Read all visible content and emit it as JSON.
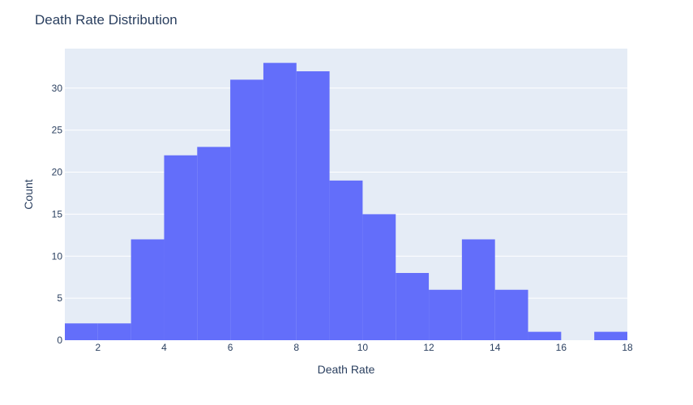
{
  "chart_data": {
    "type": "bar",
    "title": "Death Rate Distribution",
    "xlabel": "Death Rate",
    "ylabel": "Count",
    "xlim": [
      1,
      18
    ],
    "ylim": [
      0,
      34.7
    ],
    "xticks": [
      2,
      4,
      6,
      8,
      10,
      12,
      14,
      16,
      18
    ],
    "yticks": [
      0,
      5,
      10,
      15,
      20,
      25,
      30
    ],
    "bin_width": 1,
    "bins": [
      {
        "start": 1,
        "end": 2,
        "count": 2
      },
      {
        "start": 2,
        "end": 3,
        "count": 2
      },
      {
        "start": 3,
        "end": 4,
        "count": 12
      },
      {
        "start": 4,
        "end": 5,
        "count": 22
      },
      {
        "start": 5,
        "end": 6,
        "count": 23
      },
      {
        "start": 6,
        "end": 7,
        "count": 31
      },
      {
        "start": 7,
        "end": 8,
        "count": 33
      },
      {
        "start": 8,
        "end": 9,
        "count": 32
      },
      {
        "start": 9,
        "end": 10,
        "count": 19
      },
      {
        "start": 10,
        "end": 11,
        "count": 15
      },
      {
        "start": 11,
        "end": 12,
        "count": 8
      },
      {
        "start": 12,
        "end": 13,
        "count": 6
      },
      {
        "start": 13,
        "end": 14,
        "count": 12
      },
      {
        "start": 14,
        "end": 15,
        "count": 6
      },
      {
        "start": 15,
        "end": 16,
        "count": 1
      },
      {
        "start": 16,
        "end": 17,
        "count": 0
      },
      {
        "start": 17,
        "end": 18,
        "count": 1
      }
    ],
    "bar_color": "#636efa",
    "plot_background": "#e5ecf6",
    "grid": true
  }
}
